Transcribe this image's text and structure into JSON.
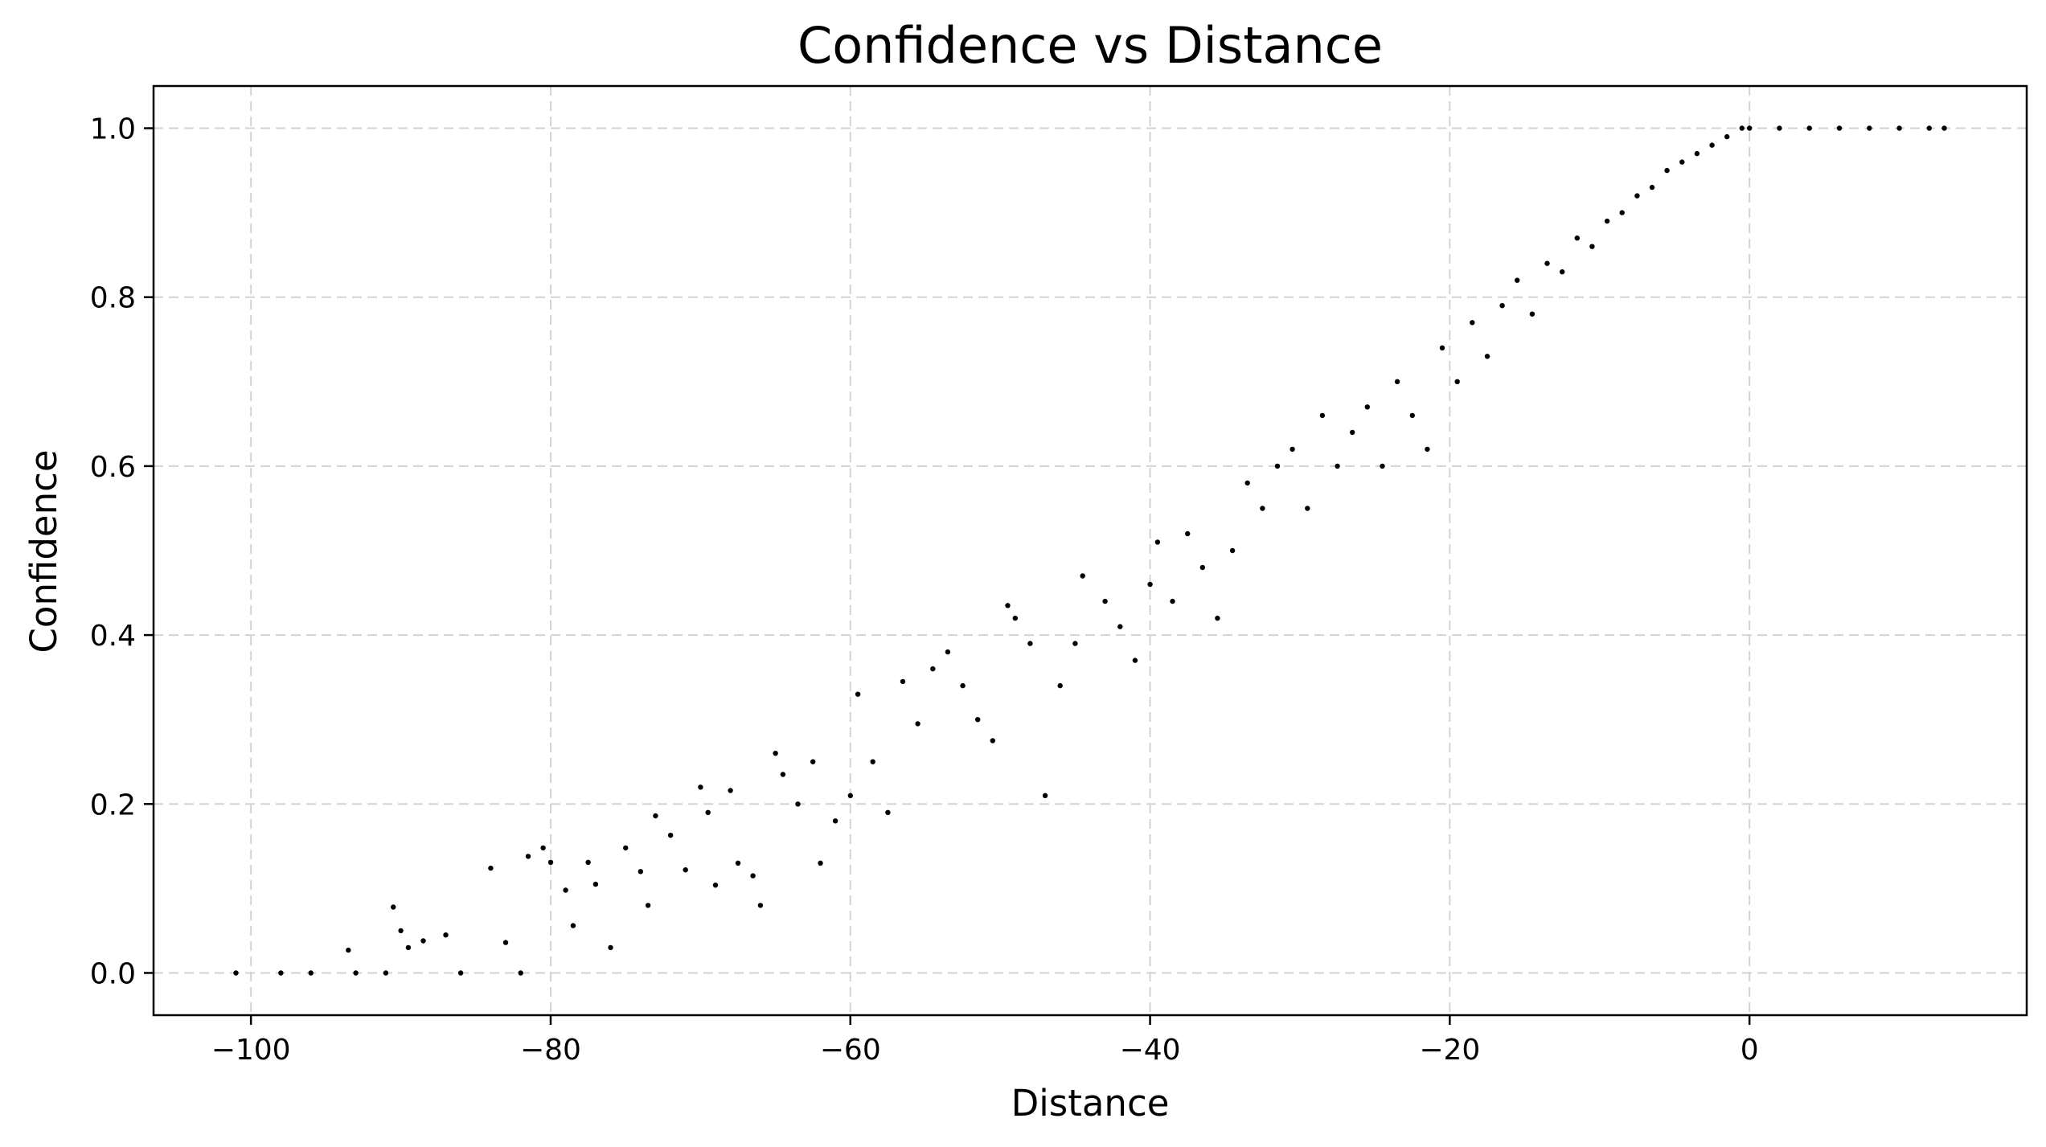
{
  "chart_data": {
    "type": "scatter",
    "title": "Confidence vs Distance",
    "xlabel": "Distance",
    "ylabel": "Confidence",
    "xlim": [
      -106.5,
      18.5
    ],
    "ylim": [
      -0.05,
      1.05
    ],
    "xticks": [
      -100,
      -80,
      -60,
      -40,
      -20,
      0
    ],
    "xtick_labels": [
      "−100",
      "−80",
      "−60",
      "−40",
      "−20",
      "0"
    ],
    "yticks": [
      0.0,
      0.2,
      0.4,
      0.6,
      0.8,
      1.0
    ],
    "ytick_labels": [
      "0.0",
      "0.2",
      "0.4",
      "0.6",
      "0.8",
      "1.0"
    ],
    "grid": true,
    "marker_color": "#000000",
    "series": [
      {
        "points": [
          [
            -101,
            0.0
          ],
          [
            -98,
            0.0
          ],
          [
            -96,
            0.0
          ],
          [
            -93.5,
            0.027
          ],
          [
            -93,
            0.0
          ],
          [
            -91,
            0.0
          ],
          [
            -90.5,
            0.078
          ],
          [
            -90,
            0.05
          ],
          [
            -89.5,
            0.03
          ],
          [
            -88.5,
            0.038
          ],
          [
            -87,
            0.045
          ],
          [
            -86,
            0.0
          ],
          [
            -84,
            0.124
          ],
          [
            -83,
            0.036
          ],
          [
            -82,
            0.0
          ],
          [
            -81.5,
            0.138
          ],
          [
            -80.5,
            0.148
          ],
          [
            -80,
            0.131
          ],
          [
            -79,
            0.098
          ],
          [
            -78.5,
            0.056
          ],
          [
            -77.5,
            0.131
          ],
          [
            -77,
            0.105
          ],
          [
            -76,
            0.03
          ],
          [
            -75,
            0.148
          ],
          [
            -74,
            0.12
          ],
          [
            -73.5,
            0.08
          ],
          [
            -73,
            0.186
          ],
          [
            -72,
            0.163
          ],
          [
            -71,
            0.122
          ],
          [
            -70,
            0.22
          ],
          [
            -69.5,
            0.19
          ],
          [
            -69,
            0.104
          ],
          [
            -68,
            0.216
          ],
          [
            -67.5,
            0.13
          ],
          [
            -66.5,
            0.115
          ],
          [
            -66,
            0.08
          ],
          [
            -65,
            0.26
          ],
          [
            -64.5,
            0.235
          ],
          [
            -63.5,
            0.2
          ],
          [
            -62.5,
            0.25
          ],
          [
            -62,
            0.13
          ],
          [
            -61,
            0.18
          ],
          [
            -60,
            0.21
          ],
          [
            -59.5,
            0.33
          ],
          [
            -58.5,
            0.25
          ],
          [
            -57.5,
            0.19
          ],
          [
            -56.5,
            0.345
          ],
          [
            -55.5,
            0.295
          ],
          [
            -54.5,
            0.36
          ],
          [
            -53.5,
            0.38
          ],
          [
            -52.5,
            0.34
          ],
          [
            -51.5,
            0.3
          ],
          [
            -50.5,
            0.275
          ],
          [
            -49.5,
            0.435
          ],
          [
            -49,
            0.42
          ],
          [
            -48,
            0.39
          ],
          [
            -47,
            0.21
          ],
          [
            -46,
            0.34
          ],
          [
            -45,
            0.39
          ],
          [
            -44.5,
            0.47
          ],
          [
            -43,
            0.44
          ],
          [
            -42,
            0.41
          ],
          [
            -41,
            0.37
          ],
          [
            -40,
            0.46
          ],
          [
            -39.5,
            0.51
          ],
          [
            -38.5,
            0.44
          ],
          [
            -37.5,
            0.52
          ],
          [
            -36.5,
            0.48
          ],
          [
            -35.5,
            0.42
          ],
          [
            -34.5,
            0.5
          ],
          [
            -33.5,
            0.58
          ],
          [
            -32.5,
            0.55
          ],
          [
            -31.5,
            0.6
          ],
          [
            -30.5,
            0.62
          ],
          [
            -29.5,
            0.55
          ],
          [
            -28.5,
            0.66
          ],
          [
            -27.5,
            0.6
          ],
          [
            -26.5,
            0.64
          ],
          [
            -25.5,
            0.67
          ],
          [
            -24.5,
            0.6
          ],
          [
            -23.5,
            0.7
          ],
          [
            -22.5,
            0.66
          ],
          [
            -21.5,
            0.62
          ],
          [
            -20.5,
            0.74
          ],
          [
            -19.5,
            0.7
          ],
          [
            -18.5,
            0.77
          ],
          [
            -17.5,
            0.73
          ],
          [
            -16.5,
            0.79
          ],
          [
            -15.5,
            0.82
          ],
          [
            -14.5,
            0.78
          ],
          [
            -13.5,
            0.84
          ],
          [
            -12.5,
            0.83
          ],
          [
            -11.5,
            0.87
          ],
          [
            -10.5,
            0.86
          ],
          [
            -9.5,
            0.89
          ],
          [
            -8.5,
            0.9
          ],
          [
            -7.5,
            0.92
          ],
          [
            -6.5,
            0.93
          ],
          [
            -5.5,
            0.95
          ],
          [
            -4.5,
            0.96
          ],
          [
            -3.5,
            0.97
          ],
          [
            -2.5,
            0.98
          ],
          [
            -1.5,
            0.99
          ],
          [
            -0.5,
            1.0
          ],
          [
            0,
            1.0
          ],
          [
            2,
            1.0
          ],
          [
            4,
            1.0
          ],
          [
            6,
            1.0
          ],
          [
            8,
            1.0
          ],
          [
            10,
            1.0
          ],
          [
            12,
            1.0
          ],
          [
            13,
            1.0
          ]
        ]
      }
    ]
  }
}
